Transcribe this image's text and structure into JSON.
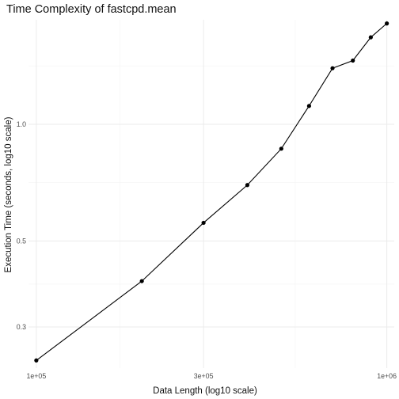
{
  "chart_data": {
    "type": "line",
    "title": "Time Complexity of fastcpd.mean",
    "xlabel": "Data Length (log10 scale)",
    "ylabel": "Execution Time (seconds, log10 scale)",
    "x_scale": "log10",
    "y_scale": "log10",
    "xlim": [
      95000,
      1050000
    ],
    "ylim": [
      0.235,
      1.86
    ],
    "x_ticks": [
      {
        "value": 100000,
        "label": "1e+05"
      },
      {
        "value": 300000,
        "label": "3e+05"
      },
      {
        "value": 1000000,
        "label": "1e+06"
      }
    ],
    "x_minor_ticks": [
      173205,
      547723
    ],
    "y_ticks": [
      {
        "value": 0.3,
        "label": "0.3"
      },
      {
        "value": 0.5,
        "label": "0.5"
      },
      {
        "value": 1.0,
        "label": "1.0"
      }
    ],
    "y_minor_ticks": [
      0.387,
      0.707,
      1.414
    ],
    "grid": true,
    "legend": "none",
    "series": [
      {
        "x": [
          100000,
          200000,
          300000,
          400000,
          500000,
          600000,
          700000,
          800000,
          900000,
          1000000
        ],
        "y": [
          0.246,
          0.394,
          0.557,
          0.697,
          0.865,
          1.115,
          1.395,
          1.46,
          1.676,
          1.82
        ]
      }
    ]
  }
}
